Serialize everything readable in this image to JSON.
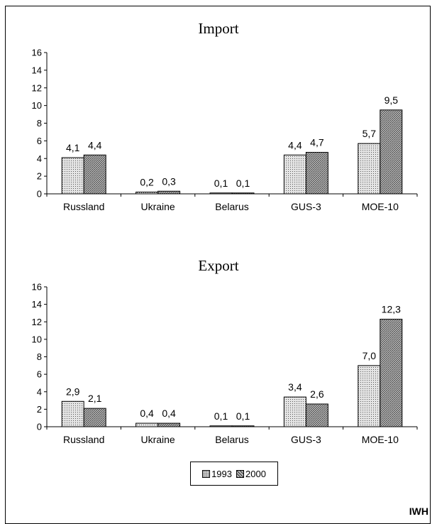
{
  "credit": "IWH",
  "legend": {
    "items": [
      "1993",
      "2000"
    ]
  },
  "chart_data": [
    {
      "type": "bar",
      "title": "Import",
      "categories": [
        "Russland",
        "Ukraine",
        "Belarus",
        "GUS-3",
        "MOE-10"
      ],
      "series": [
        {
          "name": "1993",
          "values": [
            4.1,
            0.2,
            0.1,
            4.4,
            5.7
          ],
          "labels": [
            "4,1",
            "0,2",
            "0,1",
            "4,4",
            "5,7"
          ]
        },
        {
          "name": "2000",
          "values": [
            4.4,
            0.3,
            0.1,
            4.7,
            9.5
          ],
          "labels": [
            "4,4",
            "0,3",
            "0,1",
            "4,7",
            "9,5"
          ]
        }
      ],
      "ylim": [
        0,
        16
      ],
      "yticks": [
        0,
        2,
        4,
        6,
        8,
        10,
        12,
        14,
        16
      ],
      "grid": false,
      "legend": "bottom-center"
    },
    {
      "type": "bar",
      "title": "Export",
      "categories": [
        "Russland",
        "Ukraine",
        "Belarus",
        "GUS-3",
        "MOE-10"
      ],
      "series": [
        {
          "name": "1993",
          "values": [
            2.9,
            0.4,
            0.1,
            3.4,
            7.0
          ],
          "labels": [
            "2,9",
            "0,4",
            "0,1",
            "3,4",
            "7,0"
          ]
        },
        {
          "name": "2000",
          "values": [
            2.1,
            0.4,
            0.1,
            2.6,
            12.3
          ],
          "labels": [
            "2,1",
            "0,4",
            "0,1",
            "2,6",
            "12,3"
          ]
        }
      ],
      "ylim": [
        0,
        16
      ],
      "yticks": [
        0,
        2,
        4,
        6,
        8,
        10,
        12,
        14,
        16
      ],
      "grid": false,
      "legend": "bottom-center"
    }
  ]
}
